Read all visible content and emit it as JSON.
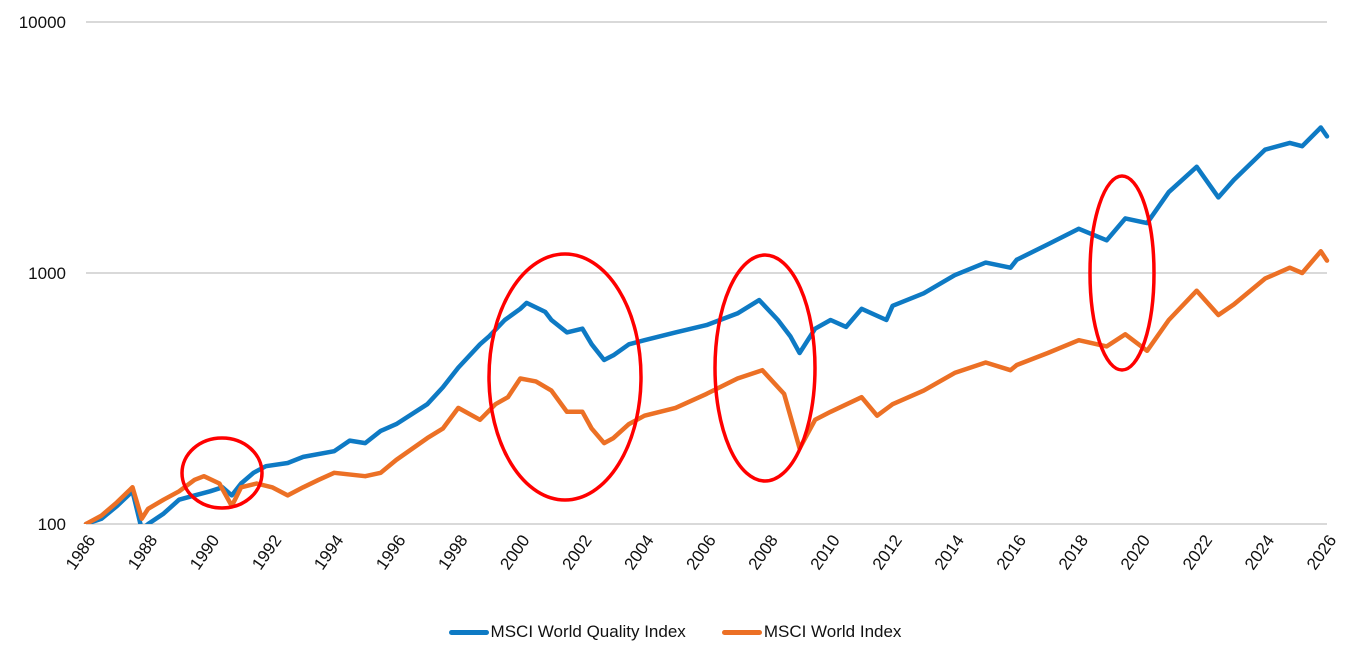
{
  "chart_data": {
    "type": "line",
    "title": "",
    "xlabel": "",
    "ylabel": "",
    "yscale": "log",
    "ylim": [
      100,
      10000
    ],
    "xlim": [
      1986,
      2026
    ],
    "grid": true,
    "legend_position": "bottom",
    "y_ticks": [
      "100",
      "1000",
      "10000"
    ],
    "x_ticks": [
      "1986",
      "1988",
      "1990",
      "1992",
      "1994",
      "1996",
      "1998",
      "2000",
      "2002",
      "2004",
      "2006",
      "2008",
      "2010",
      "2012",
      "2014",
      "2016",
      "2018",
      "2020",
      "2022",
      "2024",
      "2026"
    ],
    "series": [
      {
        "name": "MSCI World Quality Index",
        "color": "#0E7AC4",
        "x": [
          1986,
          1986.5,
          1987,
          1987.5,
          1987.8,
          1988,
          1988.5,
          1989,
          1989.5,
          1990,
          1990.4,
          1990.7,
          1991,
          1991.4,
          1991.8,
          1992.5,
          1993,
          1994,
          1994.5,
          1995,
          1995.5,
          1996,
          1997,
          1997.5,
          1998,
          1998.7,
          1999,
          1999.5,
          2000,
          2000.2,
          2000.8,
          2001,
          2001.5,
          2002,
          2002.3,
          2002.7,
          2003,
          2003.5,
          2004,
          2005,
          2006,
          2007,
          2007.7,
          2008.3,
          2008.7,
          2009,
          2009.5,
          2010,
          2010.5,
          2011,
          2011.8,
          2012,
          2013,
          2014,
          2015,
          2015.8,
          2016,
          2017,
          2018,
          2018.9,
          2019.5,
          2020.2,
          2020.9,
          2021.8,
          2022.5,
          2023,
          2024,
          2024.8,
          2025.2,
          2025.8,
          2026
        ],
        "values": [
          100,
          105,
          118,
          135,
          95,
          100,
          110,
          125,
          130,
          135,
          140,
          130,
          145,
          160,
          170,
          175,
          185,
          195,
          215,
          210,
          235,
          250,
          300,
          350,
          420,
          520,
          560,
          650,
          720,
          760,
          700,
          650,
          580,
          600,
          520,
          450,
          470,
          520,
          540,
          580,
          620,
          690,
          780,
          650,
          560,
          480,
          600,
          650,
          610,
          720,
          650,
          740,
          830,
          980,
          1100,
          1050,
          1130,
          1300,
          1500,
          1350,
          1650,
          1580,
          2100,
          2650,
          2000,
          2350,
          3100,
          3300,
          3200,
          3800,
          3500
        ]
      },
      {
        "name": "MSCI World Index",
        "color": "#EC7025",
        "x": [
          1986,
          1986.5,
          1987,
          1987.5,
          1987.8,
          1988,
          1988.5,
          1989,
          1989.5,
          1989.8,
          1990.3,
          1990.7,
          1991,
          1991.5,
          1992,
          1992.5,
          1993,
          1993.5,
          1994,
          1995,
          1995.5,
          1996,
          1997,
          1997.5,
          1998,
          1998.7,
          1999.2,
          1999.6,
          2000,
          2000.5,
          2001,
          2001.5,
          2002,
          2002.3,
          2002.7,
          2003,
          2003.5,
          2004,
          2005,
          2006,
          2007,
          2007.8,
          2008.5,
          2009,
          2009.5,
          2010,
          2011,
          2011.5,
          2012,
          2013,
          2014,
          2015,
          2015.8,
          2016,
          2017,
          2018,
          2018.9,
          2019.5,
          2020.2,
          2020.9,
          2021.8,
          2022.5,
          2023,
          2024,
          2024.8,
          2025.2,
          2025.8,
          2026
        ],
        "values": [
          100,
          108,
          122,
          140,
          105,
          115,
          125,
          135,
          150,
          155,
          145,
          118,
          140,
          145,
          140,
          130,
          140,
          150,
          160,
          155,
          160,
          180,
          220,
          240,
          290,
          260,
          300,
          320,
          380,
          370,
          340,
          280,
          280,
          240,
          210,
          220,
          250,
          270,
          290,
          330,
          380,
          410,
          330,
          200,
          260,
          280,
          320,
          270,
          300,
          340,
          400,
          440,
          410,
          430,
          480,
          540,
          510,
          570,
          490,
          650,
          850,
          680,
          750,
          950,
          1050,
          1000,
          1220,
          1120
        ]
      }
    ],
    "annotations": [
      {
        "type": "ellipse",
        "color": "#FF0000",
        "label": "",
        "around_year": 1990.5
      },
      {
        "type": "ellipse",
        "color": "#FF0000",
        "label": "",
        "around_year": 2001.5
      },
      {
        "type": "ellipse",
        "color": "#FF0000",
        "label": "",
        "around_year": 2008.5
      },
      {
        "type": "ellipse",
        "color": "#FF0000",
        "label": "",
        "around_year": 2020.2
      }
    ]
  },
  "legend": {
    "items": [
      {
        "label": "MSCI World Quality Index",
        "color": "#0E7AC4"
      },
      {
        "label": "MSCI World Index",
        "color": "#EC7025"
      }
    ]
  }
}
